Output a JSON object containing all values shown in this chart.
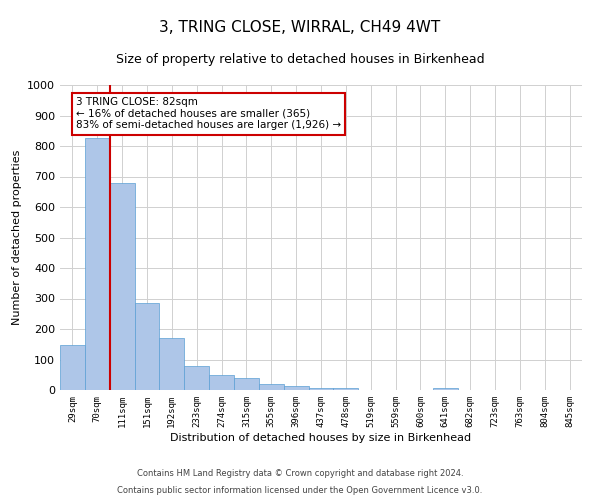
{
  "title": "3, TRING CLOSE, WIRRAL, CH49 4WT",
  "subtitle": "Size of property relative to detached houses in Birkenhead",
  "xlabel": "Distribution of detached houses by size in Birkenhead",
  "ylabel": "Number of detached properties",
  "footer_line1": "Contains HM Land Registry data © Crown copyright and database right 2024.",
  "footer_line2": "Contains public sector information licensed under the Open Government Licence v3.0.",
  "categories": [
    "29sqm",
    "70sqm",
    "111sqm",
    "151sqm",
    "192sqm",
    "233sqm",
    "274sqm",
    "315sqm",
    "355sqm",
    "396sqm",
    "437sqm",
    "478sqm",
    "519sqm",
    "559sqm",
    "600sqm",
    "641sqm",
    "682sqm",
    "723sqm",
    "763sqm",
    "804sqm",
    "845sqm"
  ],
  "values": [
    148,
    825,
    678,
    285,
    172,
    78,
    50,
    40,
    20,
    13,
    8,
    8,
    0,
    0,
    0,
    8,
    0,
    0,
    0,
    0,
    0
  ],
  "bar_color": "#aec6e8",
  "bar_edge_color": "#5a9fd4",
  "property_line_x": 1.5,
  "annotation_text": "3 TRING CLOSE: 82sqm\n← 16% of detached houses are smaller (365)\n83% of semi-detached houses are larger (1,926) →",
  "annotation_box_color": "#ffffff",
  "annotation_box_edge_color": "#cc0000",
  "ylim": [
    0,
    1000
  ],
  "yticks": [
    0,
    100,
    200,
    300,
    400,
    500,
    600,
    700,
    800,
    900,
    1000
  ],
  "grid_color": "#d0d0d0",
  "bg_color": "#ffffff",
  "red_line_color": "#cc0000",
  "title_fontsize": 11,
  "subtitle_fontsize": 9,
  "ylabel_fontsize": 8,
  "xlabel_fontsize": 8,
  "ytick_fontsize": 8,
  "xtick_fontsize": 6.5,
  "annotation_fontsize": 7.5,
  "footer_fontsize": 6.0
}
